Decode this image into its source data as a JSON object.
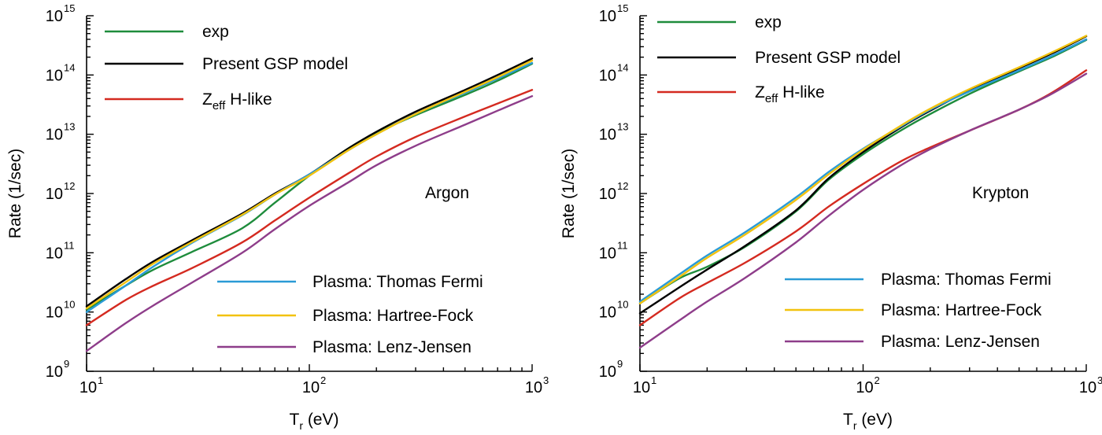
{
  "chart_data": [
    {
      "type": "line",
      "panel_label": "Argon",
      "xlabel": {
        "main": "T",
        "sub": "r",
        "rest": " (eV)"
      },
      "ylabel": "Rate (1/sec)",
      "xscale": "log",
      "yscale": "log",
      "xlim": [
        10,
        1000
      ],
      "ylim": [
        1000000000.0,
        1000000000000000.0
      ],
      "x_ticks": [
        {
          "base": "10",
          "exp": "1"
        },
        {
          "base": "10",
          "exp": "2"
        },
        {
          "base": "10",
          "exp": "3"
        }
      ],
      "y_ticks": [
        {
          "base": "10",
          "exp": "9"
        },
        {
          "base": "10",
          "exp": "10"
        },
        {
          "base": "10",
          "exp": "11"
        },
        {
          "base": "10",
          "exp": "12"
        },
        {
          "base": "10",
          "exp": "13"
        },
        {
          "base": "10",
          "exp": "14"
        },
        {
          "base": "10",
          "exp": "15"
        }
      ],
      "legend_top": [
        "exp",
        "Present GSP model",
        "Zeff H-like"
      ],
      "legend_bottom": [
        "Plasma: Thomas Fermi",
        "Plasma: Hartree-Fock",
        "Plasma: Lenz-Jensen"
      ],
      "series": [
        {
          "name": "exp",
          "color": "#1e8c3c",
          "x": [
            10,
            15,
            20,
            30,
            50,
            70,
            100,
            150,
            200,
            300,
            500,
            700,
            1000
          ],
          "values": [
            11000000000.0,
            28000000000.0,
            52000000000.0,
            105000000000.0,
            260000000000.0,
            700000000000.0,
            2000000000000.0,
            5800000000000.0,
            10500000000000.0,
            21000000000000.0,
            46000000000000.0,
            80000000000000.0,
            155000000000000.0
          ]
        },
        {
          "name": "Present GSP model",
          "color": "#000000",
          "x": [
            10,
            15,
            20,
            30,
            50,
            70,
            100,
            150,
            200,
            300,
            500,
            700,
            1000
          ],
          "values": [
            12500000000.0,
            36000000000.0,
            72000000000.0,
            165000000000.0,
            460000000000.0,
            1000000000000.0,
            2100000000000.0,
            5800000000000.0,
            11000000000000.0,
            24000000000000.0,
            56000000000000.0,
            100000000000000.0,
            190000000000000.0
          ]
        },
        {
          "name": "Zeff H-like",
          "color": "#d42a20",
          "x": [
            10,
            15,
            20,
            30,
            50,
            70,
            100,
            150,
            200,
            300,
            500,
            700,
            1000
          ],
          "values": [
            6000000000.0,
            16000000000.0,
            28000000000.0,
            56000000000.0,
            150000000000.0,
            350000000000.0,
            850000000000.0,
            2200000000000.0,
            4200000000000.0,
            9000000000000.0,
            20000000000000.0,
            33000000000000.0,
            56000000000000.0
          ]
        },
        {
          "name": "Plasma: Thomas Fermi",
          "color": "#2a9bd6",
          "x": [
            10,
            15,
            20,
            30,
            50,
            70,
            100,
            150,
            200,
            300,
            500,
            700,
            1000
          ],
          "values": [
            10000000000.0,
            28000000000.0,
            59000000000.0,
            150000000000.0,
            430000000000.0,
            960000000000.0,
            2100000000000.0,
            5400000000000.0,
            10000000000000.0,
            22000000000000.0,
            50000000000000.0,
            87000000000000.0,
            160000000000000.0
          ]
        },
        {
          "name": "Plasma: Hartree-Fock",
          "color": "#f2c20f",
          "x": [
            10,
            15,
            20,
            30,
            50,
            70,
            100,
            150,
            200,
            300,
            500,
            700,
            1000
          ],
          "values": [
            11500000000.0,
            32000000000.0,
            66000000000.0,
            155000000000.0,
            440000000000.0,
            960000000000.0,
            2000000000000.0,
            5400000000000.0,
            10000000000000.0,
            22000000000000.0,
            52000000000000.0,
            92000000000000.0,
            175000000000000.0
          ]
        },
        {
          "name": "Plasma: Lenz-Jensen",
          "color": "#8e3d8a",
          "x": [
            10,
            15,
            20,
            30,
            50,
            70,
            100,
            150,
            200,
            300,
            500,
            700,
            1000
          ],
          "values": [
            2200000000.0,
            6500000000.0,
            13000000000.0,
            32000000000.0,
            100000000000.0,
            250000000000.0,
            620000000000.0,
            1550000000000.0,
            3000000000000.0,
            6400000000000.0,
            14500000000000.0,
            25000000000000.0,
            44000000000000.0
          ]
        }
      ]
    },
    {
      "type": "line",
      "panel_label": "Krypton",
      "xlabel": {
        "main": "T",
        "sub": "r",
        "rest": " (eV)"
      },
      "ylabel": "Rate (1/sec)",
      "xscale": "log",
      "yscale": "log",
      "xlim": [
        10,
        1000
      ],
      "ylim": [
        1000000000.0,
        1000000000000000.0
      ],
      "x_ticks": [
        {
          "base": "10",
          "exp": "1"
        },
        {
          "base": "10",
          "exp": "2"
        },
        {
          "base": "10",
          "exp": "3"
        }
      ],
      "y_ticks": [
        {
          "base": "10",
          "exp": "9"
        },
        {
          "base": "10",
          "exp": "10"
        },
        {
          "base": "10",
          "exp": "11"
        },
        {
          "base": "10",
          "exp": "12"
        },
        {
          "base": "10",
          "exp": "13"
        },
        {
          "base": "10",
          "exp": "14"
        },
        {
          "base": "10",
          "exp": "15"
        }
      ],
      "legend_top": [
        "exp",
        "Present GSP model",
        "Zeff H-like"
      ],
      "legend_bottom": [
        "Plasma: Thomas Fermi",
        "Plasma: Hartree-Fock",
        "Plasma: Lenz-Jensen"
      ],
      "series": [
        {
          "name": "exp",
          "color": "#1e8c3c",
          "x": [
            10,
            15,
            20,
            30,
            50,
            70,
            100,
            150,
            200,
            300,
            500,
            700,
            1000
          ],
          "values": [
            14000000000.0,
            37000000000.0,
            58000000000.0,
            130000000000.0,
            500000000000.0,
            1700000000000.0,
            4600000000000.0,
            12000000000000.0,
            22000000000000.0,
            48000000000000.0,
            115000000000000.0,
            200000000000000.0,
            390000000000000.0
          ]
        },
        {
          "name": "Present GSP model",
          "color": "#000000",
          "x": [
            10,
            15,
            20,
            30,
            50,
            70,
            100,
            150,
            200,
            300,
            500,
            700,
            1000
          ],
          "values": [
            9500000000.0,
            26000000000.0,
            52000000000.0,
            135000000000.0,
            520000000000.0,
            1800000000000.0,
            5000000000000.0,
            13500000000000.0,
            25000000000000.0,
            55000000000000.0,
            130000000000000.0,
            230000000000000.0,
            450000000000000.0
          ]
        },
        {
          "name": "Zeff H-like",
          "color": "#d42a20",
          "x": [
            10,
            15,
            20,
            30,
            50,
            70,
            100,
            150,
            200,
            300,
            500,
            700,
            1000
          ],
          "values": [
            6000000000.0,
            17000000000.0,
            31000000000.0,
            70000000000.0,
            230000000000.0,
            600000000000.0,
            1450000000000.0,
            3600000000000.0,
            6000000000000.0,
            11500000000000.0,
            26000000000000.0,
            50000000000000.0,
            120000000000000.0
          ]
        },
        {
          "name": "Plasma: Thomas Fermi",
          "color": "#2a9bd6",
          "x": [
            10,
            15,
            20,
            30,
            50,
            70,
            100,
            150,
            200,
            300,
            500,
            700,
            1000
          ],
          "values": [
            15000000000.0,
            43000000000.0,
            90000000000.0,
            230000000000.0,
            860000000000.0,
            2300000000000.0,
            5700000000000.0,
            14000000000000.0,
            26000000000000.0,
            53000000000000.0,
            120000000000000.0,
            210000000000000.0,
            400000000000000.0
          ]
        },
        {
          "name": "Plasma: Hartree-Fock",
          "color": "#f2c20f",
          "x": [
            10,
            15,
            20,
            30,
            50,
            70,
            100,
            150,
            200,
            300,
            500,
            700,
            1000
          ],
          "values": [
            14000000000.0,
            39000000000.0,
            82000000000.0,
            210000000000.0,
            780000000000.0,
            2100000000000.0,
            5500000000000.0,
            14500000000000.0,
            27000000000000.0,
            58000000000000.0,
            135000000000000.0,
            240000000000000.0,
            460000000000000.0
          ]
        },
        {
          "name": "Plasma: Lenz-Jensen",
          "color": "#8e3d8a",
          "x": [
            10,
            15,
            20,
            30,
            50,
            70,
            100,
            150,
            200,
            300,
            500,
            700,
            1000
          ],
          "values": [
            2500000000.0,
            7200000000.0,
            15000000000.0,
            39000000000.0,
            150000000000.0,
            420000000000.0,
            1150000000000.0,
            3100000000000.0,
            5600000000000.0,
            11500000000000.0,
            26000000000000.0,
            48000000000000.0,
            105000000000000.0
          ]
        }
      ]
    }
  ]
}
